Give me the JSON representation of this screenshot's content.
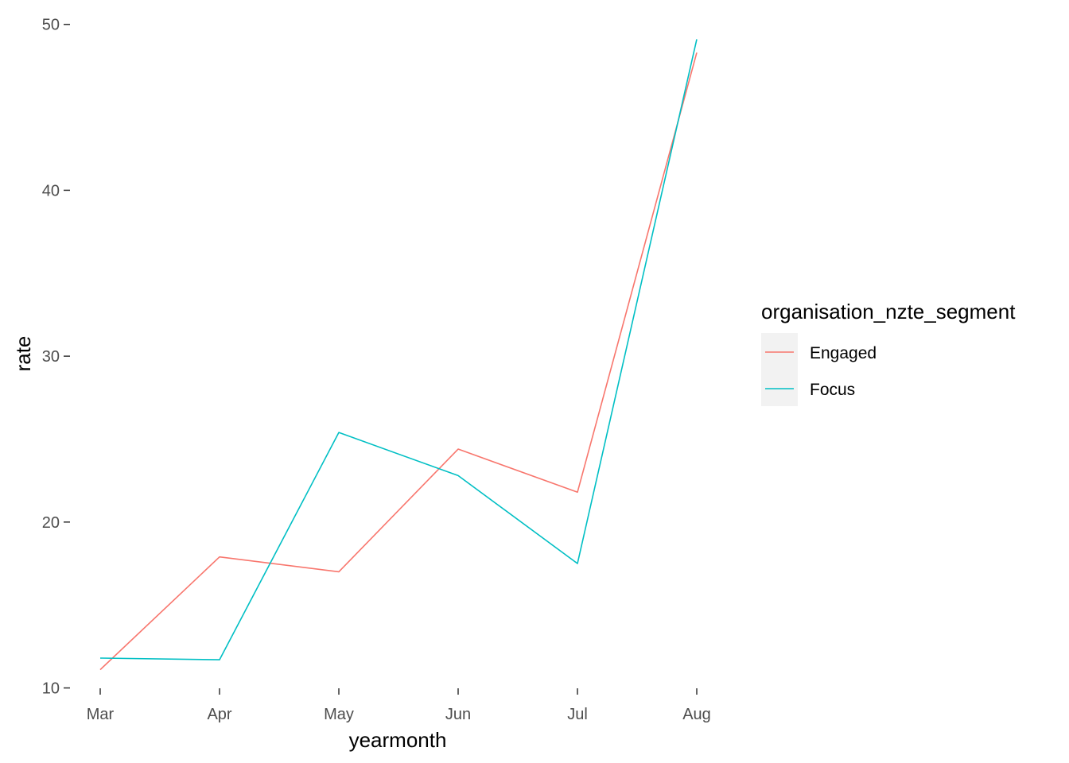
{
  "chart_data": {
    "type": "line",
    "xlabel": "yearmonth",
    "ylabel": "rate",
    "categories": [
      "Mar",
      "Apr",
      "May",
      "Jun",
      "Jul",
      "Aug"
    ],
    "ylim": [
      9.5,
      50.8
    ],
    "yticks": [
      10,
      20,
      30,
      40,
      50
    ],
    "grid": false,
    "legend": {
      "title": "organisation_nzte_segment",
      "position": "right"
    },
    "series": [
      {
        "name": "Engaged",
        "color": "#F8766D",
        "values": [
          11.1,
          17.9,
          17.0,
          24.4,
          21.8,
          48.3
        ]
      },
      {
        "name": "Focus",
        "color": "#00BFC4",
        "values": [
          11.8,
          11.7,
          25.4,
          22.8,
          17.5,
          49.1
        ]
      }
    ]
  }
}
